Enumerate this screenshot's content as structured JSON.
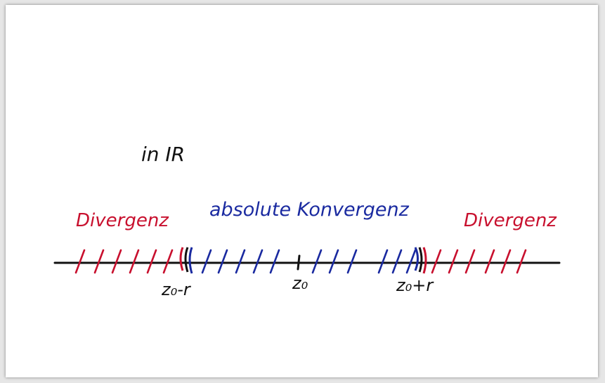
{
  "colors": {
    "divergence": "#c8102e",
    "convergence": "#1a2aa0",
    "ink": "#111111",
    "page": "#ffffff"
  },
  "labels": {
    "context": "in IR",
    "divergence_left": "Divergenz",
    "convergence": "absolute Konvergenz",
    "divergence_right": "Divergenz"
  },
  "points": {
    "left": "z₀-r",
    "center": "z₀",
    "right": "z₀+r"
  }
}
